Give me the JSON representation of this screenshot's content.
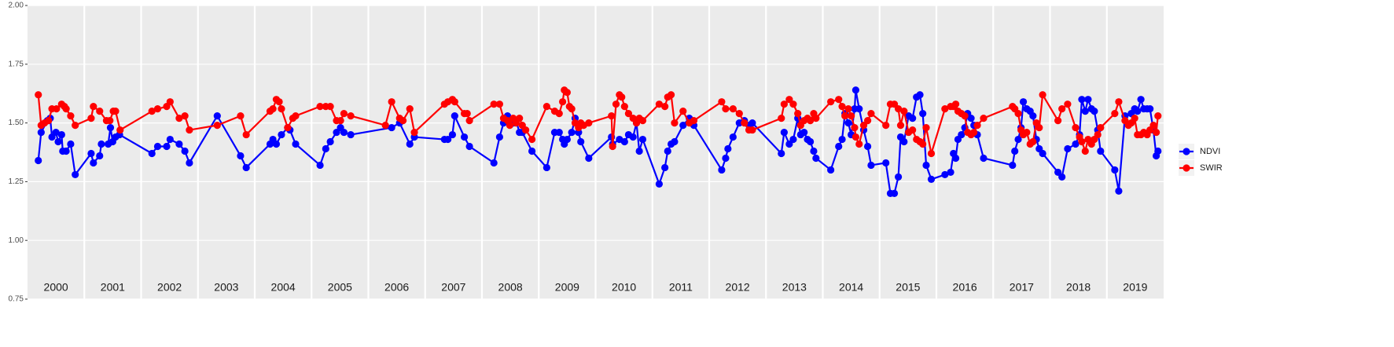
{
  "chart_data": {
    "type": "line",
    "ylim": [
      0.75,
      2.0
    ],
    "yticks": [
      {
        "value": 0.75,
        "label": "0.75"
      },
      {
        "value": 1.0,
        "label": "1.00"
      },
      {
        "value": 1.25,
        "label": "1.25"
      },
      {
        "value": 1.5,
        "label": "1.50"
      },
      {
        "value": 1.75,
        "label": "1.75"
      },
      {
        "value": 2.0,
        "label": "2.00"
      }
    ],
    "xlim": [
      2000,
      2020
    ],
    "xticks": [
      {
        "value": 2000.5,
        "label": "2000"
      },
      {
        "value": 2001.5,
        "label": "2001"
      },
      {
        "value": 2002.5,
        "label": "2002"
      },
      {
        "value": 2003.5,
        "label": "2003"
      },
      {
        "value": 2004.5,
        "label": "2004"
      },
      {
        "value": 2005.5,
        "label": "2005"
      },
      {
        "value": 2006.5,
        "label": "2006"
      },
      {
        "value": 2007.5,
        "label": "2007"
      },
      {
        "value": 2008.5,
        "label": "2008"
      },
      {
        "value": 2009.5,
        "label": "2009"
      },
      {
        "value": 2010.5,
        "label": "2010"
      },
      {
        "value": 2011.5,
        "label": "2011"
      },
      {
        "value": 2012.5,
        "label": "2012"
      },
      {
        "value": 2013.5,
        "label": "2013"
      },
      {
        "value": 2014.5,
        "label": "2014"
      },
      {
        "value": 2015.5,
        "label": "2015"
      },
      {
        "value": 2016.5,
        "label": "2016"
      },
      {
        "value": 2017.5,
        "label": "2017"
      },
      {
        "value": 2018.5,
        "label": "2018"
      },
      {
        "value": 2019.5,
        "label": "2019"
      }
    ],
    "xgrid": [
      2001,
      2002,
      2003,
      2004,
      2005,
      2006,
      2007,
      2008,
      2009,
      2010,
      2011,
      2012,
      2013,
      2014,
      2015,
      2016,
      2017,
      2018,
      2019
    ],
    "grid": true,
    "legend": "right",
    "series": [
      {
        "name": "NDVI",
        "color": "#0000ff",
        "x": [
          2000.19,
          2000.24,
          2000.35,
          2000.4,
          2000.43,
          2000.5,
          2000.54,
          2000.6,
          2000.62,
          2000.68,
          2000.76,
          2000.84,
          2001.12,
          2001.16,
          2001.27,
          2001.3,
          2001.42,
          2001.46,
          2001.5,
          2001.55,
          2001.62,
          2002.19,
          2002.29,
          2002.45,
          2002.51,
          2002.67,
          2002.77,
          2002.85,
          2003.34,
          2003.75,
          2003.85,
          2004.27,
          2004.32,
          2004.38,
          2004.47,
          2004.58,
          2004.62,
          2004.72,
          2005.15,
          2005.25,
          2005.33,
          2005.44,
          2005.51,
          2005.57,
          2005.69,
          2006.41,
          2006.55,
          2006.73,
          2006.81,
          2007.34,
          2007.4,
          2007.48,
          2007.52,
          2007.69,
          2007.78,
          2008.21,
          2008.31,
          2008.38,
          2008.45,
          2008.55,
          2008.6,
          2008.66,
          2008.71,
          2008.88,
          2009.14,
          2009.28,
          2009.36,
          2009.42,
          2009.45,
          2009.5,
          2009.58,
          2009.64,
          2009.7,
          2009.74,
          2009.88,
          2010.28,
          2010.3,
          2010.42,
          2010.51,
          2010.58,
          2010.66,
          2010.72,
          2010.77,
          2010.83,
          2011.12,
          2011.22,
          2011.27,
          2011.33,
          2011.39,
          2011.54,
          2011.65,
          2011.73,
          2012.22,
          2012.29,
          2012.33,
          2012.42,
          2012.53,
          2012.62,
          2012.7,
          2012.76,
          2013.27,
          2013.32,
          2013.41,
          2013.48,
          2013.56,
          2013.61,
          2013.67,
          2013.73,
          2013.78,
          2013.84,
          2013.88,
          2014.14,
          2014.28,
          2014.34,
          2014.39,
          2014.45,
          2014.5,
          2014.56,
          2014.58,
          2014.64,
          2014.72,
          2014.79,
          2014.85,
          2015.11,
          2015.19,
          2015.26,
          2015.33,
          2015.37,
          2015.43,
          2015.51,
          2015.58,
          2015.65,
          2015.71,
          2015.76,
          2015.82,
          2015.91,
          2016.15,
          2016.25,
          2016.3,
          2016.34,
          2016.38,
          2016.44,
          2016.5,
          2016.55,
          2016.61,
          2016.66,
          2016.72,
          2016.83,
          2017.34,
          2017.38,
          2017.44,
          2017.49,
          2017.53,
          2017.59,
          2017.65,
          2017.7,
          2017.76,
          2017.81,
          2017.87,
          2018.14,
          2018.21,
          2018.31,
          2018.45,
          2018.52,
          2018.56,
          2018.62,
          2018.67,
          2018.73,
          2018.78,
          2018.84,
          2018.89,
          2019.14,
          2019.21,
          2019.32,
          2019.43,
          2019.49,
          2019.54,
          2019.6,
          2019.65,
          2019.71,
          2019.76,
          2019.82,
          2019.87,
          2019.9
        ],
        "values": [
          1.34,
          1.46,
          1.51,
          1.52,
          1.44,
          1.46,
          1.42,
          1.45,
          1.38,
          1.38,
          1.41,
          1.28,
          1.37,
          1.33,
          1.36,
          1.41,
          1.41,
          1.48,
          1.42,
          1.44,
          1.45,
          1.37,
          1.4,
          1.4,
          1.43,
          1.41,
          1.38,
          1.33,
          1.53,
          1.36,
          1.31,
          1.41,
          1.43,
          1.41,
          1.45,
          1.48,
          1.47,
          1.41,
          1.32,
          1.39,
          1.42,
          1.46,
          1.48,
          1.46,
          1.45,
          1.48,
          1.5,
          1.41,
          1.44,
          1.43,
          1.43,
          1.45,
          1.53,
          1.44,
          1.4,
          1.33,
          1.44,
          1.5,
          1.53,
          1.5,
          1.51,
          1.46,
          1.46,
          1.38,
          1.31,
          1.46,
          1.46,
          1.43,
          1.41,
          1.43,
          1.46,
          1.52,
          1.46,
          1.42,
          1.35,
          1.44,
          1.41,
          1.43,
          1.42,
          1.45,
          1.44,
          1.5,
          1.38,
          1.43,
          1.24,
          1.31,
          1.38,
          1.41,
          1.42,
          1.49,
          1.52,
          1.49,
          1.3,
          1.35,
          1.39,
          1.44,
          1.5,
          1.51,
          1.49,
          1.5,
          1.37,
          1.46,
          1.41,
          1.43,
          1.52,
          1.45,
          1.46,
          1.43,
          1.42,
          1.38,
          1.35,
          1.3,
          1.4,
          1.43,
          1.54,
          1.5,
          1.45,
          1.56,
          1.64,
          1.56,
          1.47,
          1.4,
          1.32,
          1.33,
          1.2,
          1.2,
          1.27,
          1.44,
          1.42,
          1.53,
          1.52,
          1.61,
          1.62,
          1.54,
          1.32,
          1.26,
          1.28,
          1.29,
          1.37,
          1.35,
          1.43,
          1.45,
          1.48,
          1.54,
          1.52,
          1.49,
          1.45,
          1.35,
          1.32,
          1.38,
          1.43,
          1.48,
          1.59,
          1.56,
          1.55,
          1.53,
          1.43,
          1.39,
          1.37,
          1.29,
          1.27,
          1.39,
          1.41,
          1.45,
          1.6,
          1.55,
          1.6,
          1.56,
          1.55,
          1.47,
          1.38,
          1.3,
          1.21,
          1.53,
          1.54,
          1.56,
          1.55,
          1.6,
          1.56,
          1.56,
          1.56,
          1.47,
          1.36,
          1.38
        ]
      },
      {
        "name": "SWIR",
        "color": "#ff0000",
        "x": [
          2000.19,
          2000.24,
          2000.3,
          2000.37,
          2000.43,
          2000.51,
          2000.6,
          2000.65,
          2000.68,
          2000.76,
          2000.84,
          2001.12,
          2001.16,
          2001.27,
          2001.39,
          2001.45,
          2001.51,
          2001.55,
          2001.63,
          2002.19,
          2002.29,
          2002.45,
          2002.51,
          2002.67,
          2002.77,
          2002.85,
          2003.34,
          2003.75,
          2003.85,
          2004.27,
          2004.32,
          2004.38,
          2004.43,
          2004.47,
          2004.58,
          2004.67,
          2004.72,
          2005.15,
          2005.25,
          2005.33,
          2005.44,
          2005.51,
          2005.57,
          2005.69,
          2006.3,
          2006.41,
          2006.55,
          2006.61,
          2006.73,
          2006.81,
          2007.34,
          2007.4,
          2007.48,
          2007.52,
          2007.69,
          2007.74,
          2007.78,
          2008.21,
          2008.31,
          2008.38,
          2008.45,
          2008.49,
          2008.55,
          2008.6,
          2008.66,
          2008.71,
          2008.77,
          2008.88,
          2009.14,
          2009.28,
          2009.36,
          2009.42,
          2009.45,
          2009.5,
          2009.54,
          2009.58,
          2009.64,
          2009.7,
          2009.74,
          2009.79,
          2009.88,
          2010.28,
          2010.3,
          2010.36,
          2010.42,
          2010.46,
          2010.51,
          2010.58,
          2010.66,
          2010.72,
          2010.77,
          2010.83,
          2011.12,
          2011.22,
          2011.27,
          2011.33,
          2011.39,
          2011.54,
          2011.65,
          2011.73,
          2012.22,
          2012.29,
          2012.42,
          2012.53,
          2012.62,
          2012.7,
          2012.76,
          2013.27,
          2013.32,
          2013.41,
          2013.48,
          2013.56,
          2013.61,
          2013.67,
          2013.73,
          2013.78,
          2013.84,
          2013.88,
          2014.14,
          2014.28,
          2014.34,
          2014.39,
          2014.45,
          2014.5,
          2014.56,
          2014.58,
          2014.64,
          2014.72,
          2014.79,
          2014.85,
          2015.11,
          2015.19,
          2015.26,
          2015.33,
          2015.37,
          2015.43,
          2015.51,
          2015.58,
          2015.65,
          2015.71,
          2015.76,
          2015.82,
          2015.91,
          2016.15,
          2016.25,
          2016.3,
          2016.34,
          2016.38,
          2016.44,
          2016.5,
          2016.55,
          2016.61,
          2016.66,
          2016.72,
          2016.83,
          2017.34,
          2017.38,
          2017.44,
          2017.49,
          2017.53,
          2017.59,
          2017.65,
          2017.7,
          2017.76,
          2017.81,
          2017.87,
          2018.14,
          2018.21,
          2018.31,
          2018.45,
          2018.52,
          2018.56,
          2018.62,
          2018.67,
          2018.73,
          2018.78,
          2018.84,
          2018.89,
          2019.14,
          2019.21,
          2019.32,
          2019.38,
          2019.43,
          2019.49,
          2019.54,
          2019.6,
          2019.65,
          2019.71,
          2019.76,
          2019.82,
          2019.87,
          2019.9
        ],
        "values": [
          1.62,
          1.49,
          1.5,
          1.51,
          1.56,
          1.56,
          1.58,
          1.57,
          1.56,
          1.53,
          1.49,
          1.52,
          1.57,
          1.55,
          1.51,
          1.51,
          1.55,
          1.55,
          1.47,
          1.55,
          1.56,
          1.57,
          1.59,
          1.52,
          1.53,
          1.47,
          1.49,
          1.53,
          1.45,
          1.55,
          1.56,
          1.6,
          1.59,
          1.56,
          1.48,
          1.52,
          1.53,
          1.57,
          1.57,
          1.57,
          1.51,
          1.51,
          1.54,
          1.53,
          1.49,
          1.59,
          1.52,
          1.51,
          1.56,
          1.46,
          1.58,
          1.59,
          1.6,
          1.59,
          1.54,
          1.54,
          1.51,
          1.58,
          1.58,
          1.52,
          1.51,
          1.49,
          1.52,
          1.5,
          1.52,
          1.49,
          1.47,
          1.43,
          1.57,
          1.55,
          1.54,
          1.59,
          1.64,
          1.63,
          1.57,
          1.56,
          1.5,
          1.48,
          1.5,
          1.49,
          1.5,
          1.53,
          1.4,
          1.58,
          1.62,
          1.61,
          1.57,
          1.54,
          1.52,
          1.5,
          1.52,
          1.51,
          1.58,
          1.57,
          1.61,
          1.62,
          1.5,
          1.55,
          1.5,
          1.51,
          1.59,
          1.56,
          1.56,
          1.54,
          1.5,
          1.47,
          1.47,
          1.52,
          1.58,
          1.6,
          1.58,
          1.54,
          1.49,
          1.51,
          1.52,
          1.51,
          1.54,
          1.52,
          1.59,
          1.6,
          1.57,
          1.53,
          1.56,
          1.53,
          1.48,
          1.44,
          1.41,
          1.49,
          1.51,
          1.54,
          1.49,
          1.58,
          1.58,
          1.56,
          1.49,
          1.55,
          1.46,
          1.47,
          1.43,
          1.42,
          1.41,
          1.48,
          1.37,
          1.56,
          1.57,
          1.57,
          1.58,
          1.55,
          1.54,
          1.53,
          1.46,
          1.45,
          1.46,
          1.49,
          1.52,
          1.57,
          1.56,
          1.54,
          1.47,
          1.45,
          1.46,
          1.41,
          1.42,
          1.5,
          1.48,
          1.62,
          1.51,
          1.56,
          1.58,
          1.48,
          1.44,
          1.42,
          1.38,
          1.43,
          1.41,
          1.43,
          1.45,
          1.48,
          1.54,
          1.59,
          1.51,
          1.49,
          1.5,
          1.52,
          1.45,
          1.45,
          1.46,
          1.45,
          1.47,
          1.49,
          1.46,
          1.53
        ]
      }
    ]
  }
}
